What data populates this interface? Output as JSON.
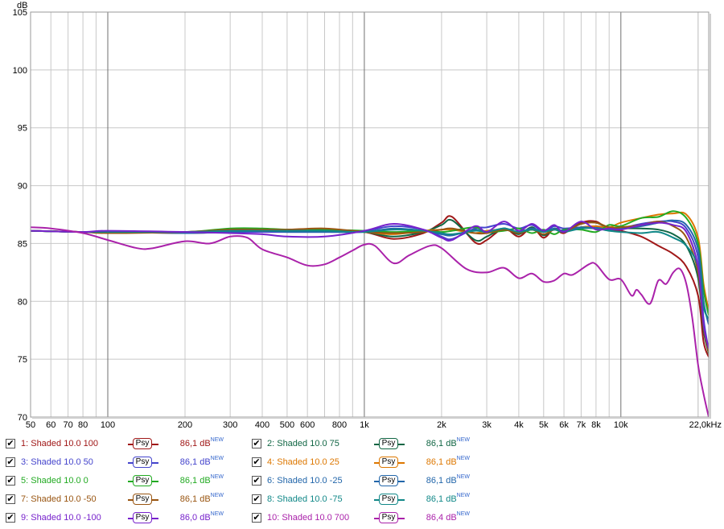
{
  "chart_data": {
    "type": "line",
    "ylabel": "dB",
    "xunit": "Hz",
    "xscale": "log",
    "xlim": [
      50,
      22000
    ],
    "ylim": [
      70,
      105
    ],
    "grid": true,
    "yticks": [
      {
        "v": 105,
        "label": "105"
      },
      {
        "v": 100,
        "label": "100"
      },
      {
        "v": 95,
        "label": "95"
      },
      {
        "v": 90,
        "label": "90"
      },
      {
        "v": 85,
        "label": "85"
      },
      {
        "v": 80,
        "label": "80"
      },
      {
        "v": 75,
        "label": "75"
      },
      {
        "v": 70,
        "label": "70"
      }
    ],
    "xticks": [
      {
        "v": 50,
        "label": "50"
      },
      {
        "v": 60,
        "label": "60"
      },
      {
        "v": 70,
        "label": "70"
      },
      {
        "v": 80,
        "label": "80"
      },
      {
        "v": 100,
        "label": "100"
      },
      {
        "v": 200,
        "label": "200"
      },
      {
        "v": 300,
        "label": "300"
      },
      {
        "v": 400,
        "label": "400"
      },
      {
        "v": 500,
        "label": "500"
      },
      {
        "v": 600,
        "label": "600"
      },
      {
        "v": 800,
        "label": "800"
      },
      {
        "v": 1000,
        "label": "1k"
      },
      {
        "v": 2000,
        "label": "2k"
      },
      {
        "v": 3000,
        "label": "3k"
      },
      {
        "v": 4000,
        "label": "4k"
      },
      {
        "v": 5000,
        "label": "5k"
      },
      {
        "v": 6000,
        "label": "6k"
      },
      {
        "v": 7000,
        "label": "7k"
      },
      {
        "v": 8000,
        "label": "8k"
      },
      {
        "v": 10000,
        "label": "10k"
      },
      {
        "v": 22000,
        "label": "22,0kHz"
      }
    ],
    "series": [
      {
        "name": "1: Shaded 10.0 100",
        "color": "#a01818",
        "value": "86,1 dB",
        "badge": "NEW",
        "psy": "Psy",
        "x": [
          50,
          80,
          100,
          200,
          300,
          400,
          500,
          700,
          1000,
          1300,
          1700,
          2000,
          2200,
          2700,
          3000,
          3500,
          4000,
          4500,
          5000,
          5500,
          6000,
          7000,
          8000,
          9000,
          10000,
          12000,
          14000,
          16000,
          18000,
          20000,
          21000,
          22000
        ],
        "y": [
          86.1,
          86.0,
          86.0,
          85.9,
          86.0,
          86.1,
          86.2,
          86.2,
          86.0,
          85.4,
          85.9,
          86.8,
          87.3,
          85.1,
          85.3,
          86.3,
          85.6,
          86.4,
          85.5,
          86.3,
          85.9,
          86.8,
          86.9,
          86.2,
          86.1,
          85.6,
          84.8,
          84.1,
          83.0,
          80.5,
          76.5,
          75.2
        ]
      },
      {
        "name": "2: Shaded 10.0 75",
        "color": "#116644",
        "value": "86,1 dB",
        "badge": "NEW",
        "psy": "Psy",
        "x": [
          50,
          80,
          100,
          200,
          300,
          400,
          500,
          700,
          1000,
          1300,
          1700,
          2000,
          2200,
          2700,
          3000,
          3500,
          4000,
          4500,
          5000,
          5500,
          6000,
          7000,
          8000,
          9000,
          10000,
          12000,
          14000,
          16000,
          18000,
          20000,
          21000,
          22000
        ],
        "y": [
          86.1,
          86.0,
          86.0,
          86.0,
          86.1,
          86.1,
          86.2,
          86.2,
          86.0,
          85.6,
          86.0,
          86.6,
          87.0,
          85.3,
          85.6,
          86.3,
          85.8,
          86.4,
          85.7,
          86.3,
          86.1,
          86.7,
          86.8,
          86.3,
          86.3,
          86.3,
          86.2,
          85.8,
          84.8,
          82.0,
          77.5,
          75.5
        ]
      },
      {
        "name": "3: Shaded 10.0 50",
        "color": "#4444cc",
        "value": "86,1 dB",
        "badge": "NEW",
        "psy": "Psy",
        "x": [
          50,
          80,
          100,
          200,
          300,
          400,
          500,
          700,
          1000,
          1300,
          1700,
          2000,
          2200,
          2700,
          3000,
          3500,
          4000,
          4500,
          5000,
          5500,
          6000,
          7000,
          8000,
          9000,
          10000,
          12000,
          14000,
          16000,
          18000,
          20000,
          21000,
          22000
        ],
        "y": [
          86.1,
          86.0,
          86.0,
          86.0,
          86.0,
          86.0,
          86.0,
          86.0,
          86.1,
          86.5,
          86.2,
          85.6,
          85.4,
          86.3,
          86.4,
          86.7,
          86.3,
          86.6,
          86.0,
          86.5,
          86.3,
          86.4,
          86.4,
          86.2,
          86.3,
          86.7,
          86.9,
          86.9,
          86.3,
          83.8,
          78.5,
          75.8
        ]
      },
      {
        "name": "4: Shaded 10.0 25",
        "color": "#dd7700",
        "value": "86,1 dB",
        "badge": "NEW",
        "psy": "Psy",
        "x": [
          50,
          80,
          100,
          200,
          300,
          400,
          500,
          700,
          1000,
          1300,
          1700,
          2000,
          2200,
          2700,
          3000,
          3500,
          4000,
          4500,
          5000,
          5500,
          6000,
          7000,
          8000,
          9000,
          10000,
          12000,
          14000,
          16000,
          18000,
          20000,
          21000,
          22000
        ],
        "y": [
          86.1,
          86.0,
          86.0,
          86.0,
          86.1,
          86.1,
          86.1,
          86.1,
          86.0,
          85.8,
          86.1,
          86.2,
          86.2,
          85.9,
          86.1,
          86.2,
          86.0,
          86.2,
          86.0,
          86.2,
          86.1,
          86.4,
          86.5,
          86.4,
          86.8,
          87.2,
          87.5,
          87.6,
          87.5,
          85.5,
          81.5,
          79.2
        ]
      },
      {
        "name": "5: Shaded 10.0 0",
        "color": "#22aa22",
        "value": "86,1 dB",
        "badge": "NEW",
        "psy": "Psy",
        "x": [
          50,
          80,
          100,
          200,
          300,
          400,
          500,
          700,
          1000,
          1300,
          1700,
          2000,
          2200,
          2700,
          3000,
          3500,
          4000,
          4500,
          5000,
          5500,
          6000,
          7000,
          8000,
          9000,
          10000,
          12000,
          14000,
          16000,
          18000,
          20000,
          21000,
          22000
        ],
        "y": [
          86.1,
          86.0,
          86.0,
          86.0,
          86.3,
          86.3,
          86.2,
          86.2,
          86.1,
          86.0,
          86.1,
          86.0,
          86.1,
          86.4,
          86.0,
          86.1,
          86.3,
          85.9,
          86.2,
          85.8,
          86.2,
          86.2,
          86.0,
          86.6,
          86.5,
          87.2,
          87.3,
          87.8,
          87.2,
          85.0,
          81.0,
          78.8
        ]
      },
      {
        "name": "6: Shaded 10.0 -25",
        "color": "#2266aa",
        "value": "86,1 dB",
        "badge": "NEW",
        "psy": "Psy",
        "x": [
          50,
          80,
          100,
          200,
          300,
          400,
          500,
          700,
          1000,
          1300,
          1700,
          2000,
          2200,
          2700,
          3000,
          3500,
          4000,
          4500,
          5000,
          5500,
          6000,
          7000,
          8000,
          9000,
          10000,
          12000,
          14000,
          16000,
          18000,
          20000,
          21000,
          22000
        ],
        "y": [
          86.1,
          86.0,
          86.0,
          85.9,
          86.0,
          86.1,
          86.0,
          86.0,
          86.0,
          86.3,
          86.1,
          85.8,
          85.7,
          86.2,
          86.0,
          86.3,
          86.0,
          86.3,
          86.0,
          86.3,
          86.1,
          86.4,
          86.3,
          86.2,
          86.3,
          86.5,
          86.8,
          87.0,
          86.6,
          84.5,
          80.0,
          78.0
        ]
      },
      {
        "name": "7: Shaded 10.0 -50",
        "color": "#995511",
        "value": "86,1 dB",
        "badge": "NEW",
        "psy": "Psy",
        "x": [
          50,
          80,
          100,
          200,
          300,
          400,
          500,
          700,
          1000,
          1300,
          1700,
          2000,
          2200,
          2700,
          3000,
          3500,
          4000,
          4500,
          5000,
          5500,
          6000,
          7000,
          8000,
          9000,
          10000,
          12000,
          14000,
          16000,
          18000,
          20000,
          21000,
          22000
        ],
        "y": [
          86.1,
          86.0,
          85.9,
          86.0,
          86.2,
          86.2,
          86.2,
          86.3,
          86.0,
          85.9,
          86.0,
          86.2,
          86.3,
          85.9,
          85.9,
          86.2,
          85.9,
          86.2,
          85.8,
          86.2,
          86.0,
          86.7,
          86.8,
          86.4,
          86.4,
          86.6,
          86.9,
          86.5,
          85.5,
          82.5,
          77.8,
          75.6
        ]
      },
      {
        "name": "8: Shaded 10.0 -75",
        "color": "#118888",
        "value": "86,1 dB",
        "badge": "NEW",
        "psy": "Psy",
        "x": [
          50,
          80,
          100,
          200,
          300,
          400,
          500,
          700,
          1000,
          1300,
          1700,
          2000,
          2200,
          2700,
          3000,
          3500,
          4000,
          4500,
          5000,
          5500,
          6000,
          7000,
          8000,
          9000,
          10000,
          12000,
          14000,
          16000,
          18000,
          20000,
          21000,
          22000
        ],
        "y": [
          86.1,
          86.0,
          86.0,
          86.0,
          86.1,
          86.1,
          86.1,
          86.1,
          86.0,
          86.2,
          86.1,
          85.9,
          85.8,
          86.1,
          86.0,
          86.3,
          86.0,
          86.2,
          86.0,
          86.2,
          86.0,
          86.3,
          86.3,
          86.1,
          86.0,
          85.9,
          86.0,
          85.5,
          84.8,
          83.0,
          79.5,
          78.5
        ]
      },
      {
        "name": "9: Shaded 10.0 -100",
        "color": "#7722cc",
        "value": "86,0 dB",
        "badge": "NEW",
        "psy": "Psy",
        "x": [
          50,
          80,
          100,
          200,
          300,
          400,
          500,
          700,
          1000,
          1300,
          1700,
          2000,
          2200,
          2700,
          3000,
          3500,
          4000,
          4500,
          5000,
          5500,
          6000,
          7000,
          8000,
          9000,
          10000,
          12000,
          14000,
          16000,
          18000,
          20000,
          21000,
          22000
        ],
        "y": [
          86.1,
          86.0,
          86.1,
          86.0,
          85.9,
          85.8,
          85.6,
          85.6,
          86.1,
          86.7,
          86.2,
          85.5,
          85.3,
          86.5,
          86.0,
          86.9,
          86.1,
          86.7,
          86.1,
          86.6,
          86.0,
          86.9,
          86.2,
          86.3,
          86.2,
          86.6,
          86.8,
          86.6,
          86.0,
          83.0,
          78.0,
          75.9
        ]
      },
      {
        "name": "10: Shaded 10.0 700",
        "color": "#aa22aa",
        "value": "86,4 dB",
        "badge": "NEW",
        "psy": "Psy",
        "x": [
          50,
          60,
          80,
          100,
          130,
          150,
          200,
          250,
          300,
          350,
          400,
          500,
          600,
          700,
          800,
          900,
          1000,
          1100,
          1300,
          1500,
          1800,
          2000,
          2500,
          3000,
          3500,
          4000,
          4500,
          5000,
          5500,
          6000,
          6500,
          7500,
          8000,
          9000,
          10000,
          11000,
          11500,
          12000,
          13000,
          14000,
          15000,
          16000,
          17000,
          18000,
          19000,
          20000,
          21000,
          22000
        ],
        "y": [
          86.4,
          86.3,
          85.9,
          85.3,
          84.6,
          84.6,
          85.2,
          85.0,
          85.6,
          85.5,
          84.5,
          83.8,
          83.1,
          83.2,
          83.8,
          84.4,
          84.9,
          84.8,
          83.3,
          84.0,
          84.8,
          84.6,
          82.8,
          82.5,
          82.9,
          82.0,
          82.4,
          81.7,
          81.8,
          82.4,
          82.3,
          83.2,
          83.2,
          81.9,
          81.9,
          80.5,
          81.0,
          80.6,
          79.8,
          81.8,
          81.5,
          82.5,
          82.8,
          81.5,
          78.5,
          74.5,
          72.0,
          70.0
        ]
      }
    ]
  }
}
